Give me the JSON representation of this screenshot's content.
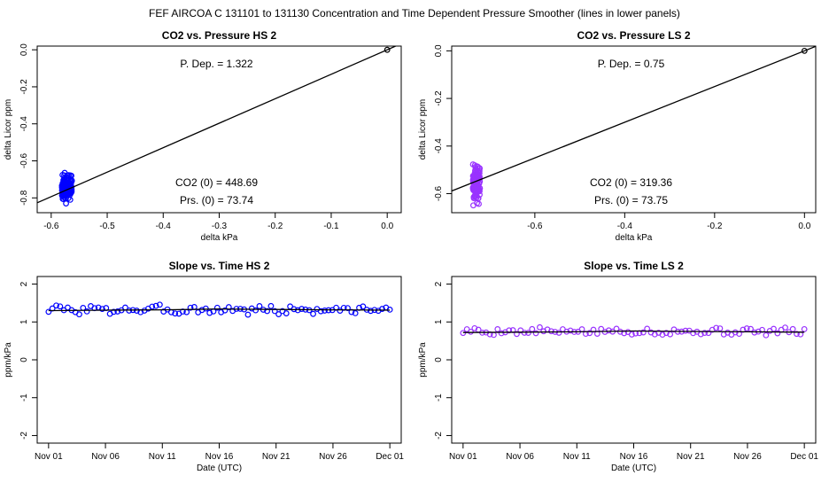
{
  "page_title": "FEF   AIRCOA C   131101 to 131130   Concentration and Time Dependent Pressure Smoother (lines in lower panels)",
  "colors": {
    "hs": "#0000ff",
    "ls": "#9933ff",
    "line": "#000000",
    "frame": "#000000"
  },
  "chart_data": [
    {
      "id": "co2-pressure-hs2",
      "type": "scatter",
      "title": "CO2 vs. Pressure HS 2",
      "xlabel": "delta kPa",
      "ylabel": "delta Licor ppm",
      "xlim": [
        -0.625,
        0.025
      ],
      "ylim": [
        -0.88,
        0.02
      ],
      "xticks": [
        -0.6,
        -0.5,
        -0.4,
        -0.3,
        -0.2,
        -0.1,
        0.0
      ],
      "xtick_labels": [
        "-0.6",
        "-0.5",
        "-0.4",
        "-0.3",
        "-0.2",
        "-0.1",
        "0.0"
      ],
      "yticks": [
        0.0,
        -0.2,
        -0.4,
        -0.6,
        -0.8
      ],
      "ytick_labels": [
        "0.0",
        "-0.2",
        "-0.4",
        "-0.6",
        "-0.8"
      ],
      "color": "#0000ff",
      "cluster": {
        "x_center": -0.572,
        "x_spread": 0.009,
        "y_min": -0.85,
        "y_max": -0.64,
        "count": 120,
        "seed": 7
      },
      "fit_line": {
        "slope": 1.322,
        "intercept": 0.0
      },
      "origin_point": {
        "x": 0.0,
        "y": 0.0
      },
      "annotations": {
        "pdep": "P. Dep. =  1.322",
        "co2": "CO2 (0) =  448.69",
        "prs": "Prs. (0) =  73.74"
      }
    },
    {
      "id": "co2-pressure-ls2",
      "type": "scatter",
      "title": "CO2 vs. Pressure LS 2",
      "xlabel": "delta kPa",
      "ylabel": "delta Licor ppm",
      "xlim": [
        -0.785,
        0.025
      ],
      "ylim": [
        -0.68,
        0.02
      ],
      "xticks": [
        -0.6,
        -0.4,
        -0.2,
        0.0
      ],
      "xtick_labels": [
        "-0.6",
        "-0.4",
        "-0.2",
        "0.0"
      ],
      "yticks": [
        0.0,
        -0.2,
        -0.4,
        -0.6
      ],
      "ytick_labels": [
        "0.0",
        "-0.2",
        "-0.4",
        "-0.6"
      ],
      "color": "#9933ff",
      "cluster": {
        "x_center": -0.73,
        "x_spread": 0.008,
        "y_min": -0.66,
        "y_max": -0.45,
        "count": 120,
        "seed": 11
      },
      "fit_line": {
        "slope": 0.75,
        "intercept": 0.0
      },
      "origin_point": {
        "x": 0.0,
        "y": 0.0
      },
      "annotations": {
        "pdep": "P. Dep. =  0.75",
        "co2": "CO2 (0) =  319.36",
        "prs": "Prs. (0) =  73.75"
      }
    },
    {
      "id": "slope-time-hs2",
      "type": "scatter",
      "title": "Slope vs. Time HS 2",
      "xlabel": "Date (UTC)",
      "ylabel": "ppm/kPa",
      "xlim": [
        -1.0,
        31.0
      ],
      "ylim": [
        -2.2,
        2.2
      ],
      "xticks": [
        0,
        5,
        10,
        15,
        20,
        25,
        30
      ],
      "xtick_labels": [
        "Nov 01",
        "Nov 06",
        "Nov 11",
        "Nov 16",
        "Nov 21",
        "Nov 26",
        "Dec 01"
      ],
      "yticks": [
        2,
        1,
        0,
        -1,
        -2
      ],
      "ytick_labels": [
        "2",
        "1",
        "0",
        "-1",
        "-2"
      ],
      "color": "#0000ff",
      "series": {
        "x_start": 0.0,
        "x_end": 30.0,
        "count": 90,
        "base": 1.32,
        "amp": 0.1,
        "seed": 3
      },
      "smoother": {
        "x": [
          0,
          5,
          10,
          15,
          20,
          25,
          30
        ],
        "y": [
          1.3,
          1.31,
          1.32,
          1.34,
          1.33,
          1.32,
          1.31
        ]
      }
    },
    {
      "id": "slope-time-ls2",
      "type": "scatter",
      "title": "Slope vs. Time LS 2",
      "xlabel": "Date (UTC)",
      "ylabel": "ppm/kPa",
      "xlim": [
        -1.0,
        31.0
      ],
      "ylim": [
        -2.2,
        2.2
      ],
      "xticks": [
        0,
        5,
        10,
        15,
        20,
        25,
        30
      ],
      "xtick_labels": [
        "Nov 01",
        "Nov 06",
        "Nov 11",
        "Nov 16",
        "Nov 21",
        "Nov 26",
        "Dec 01"
      ],
      "yticks": [
        2,
        1,
        0,
        -1,
        -2
      ],
      "ytick_labels": [
        "2",
        "1",
        "0",
        "-1",
        "-2"
      ],
      "color": "#9933ff",
      "series": {
        "x_start": 0.0,
        "x_end": 30.0,
        "count": 90,
        "base": 0.75,
        "amp": 0.08,
        "seed": 5
      },
      "smoother": {
        "x": [
          0,
          5,
          10,
          15,
          20,
          25,
          30
        ],
        "y": [
          0.72,
          0.73,
          0.74,
          0.76,
          0.75,
          0.74,
          0.73
        ]
      }
    }
  ]
}
